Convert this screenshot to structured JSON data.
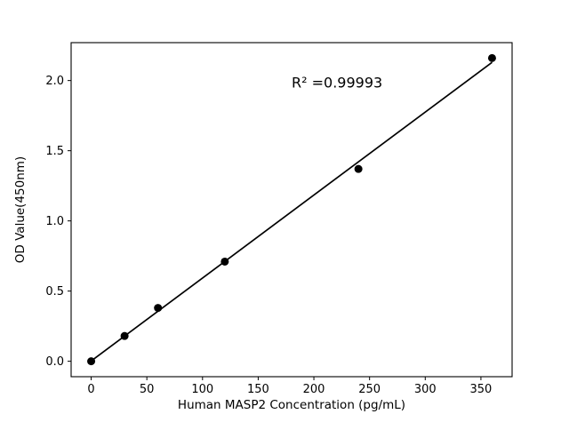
{
  "chart_data": {
    "type": "scatter",
    "title": "",
    "xlabel": "Human MASP2 Concentration (pg/mL)",
    "ylabel": "OD Value(450nm)",
    "x": [
      0,
      30,
      60,
      120,
      240,
      360
    ],
    "y": [
      0.0,
      0.18,
      0.38,
      0.71,
      1.37,
      2.16
    ],
    "fit_line": true,
    "annotation": {
      "text": "R² =0.99993",
      "x": 180,
      "y": 1.95
    },
    "xlim": [
      -18,
      378
    ],
    "ylim": [
      -0.11,
      2.27
    ],
    "xticks": [
      0,
      50,
      100,
      150,
      200,
      250,
      300,
      350
    ],
    "xtick_labels": [
      "0",
      "50",
      "100",
      "150",
      "200",
      "250",
      "300",
      "350"
    ],
    "yticks": [
      0.0,
      0.5,
      1.0,
      1.5,
      2.0
    ],
    "ytick_labels": [
      "0.0",
      "0.5",
      "1.0",
      "1.5",
      "2.0"
    ],
    "grid": false,
    "legend": null,
    "colors": {
      "marker": "#000000",
      "line": "#000000",
      "axis": "#000000",
      "background": "#ffffff"
    }
  }
}
